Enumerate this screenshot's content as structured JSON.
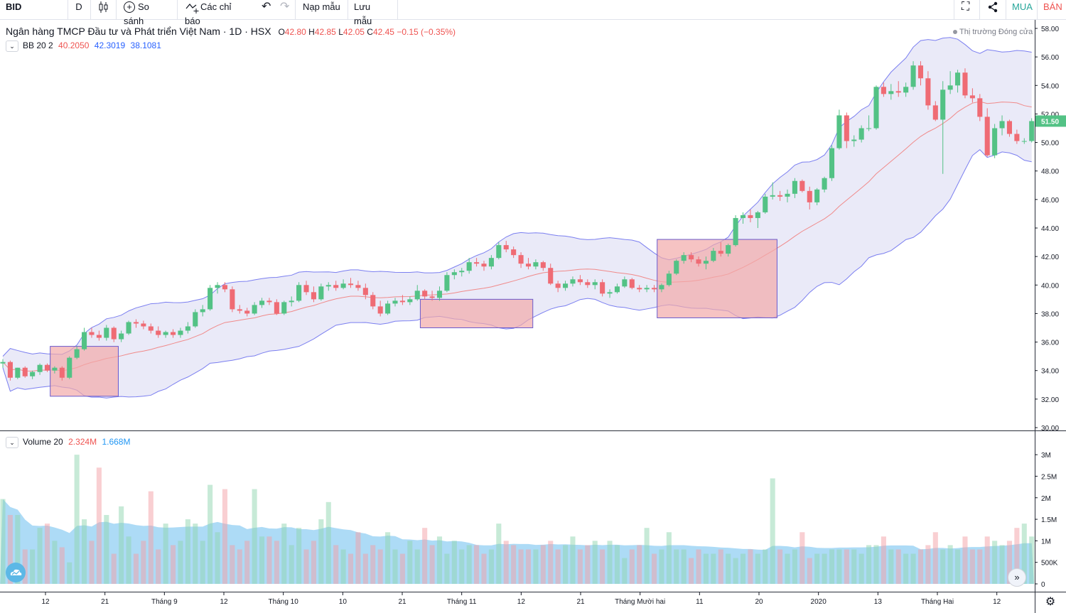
{
  "toolbar": {
    "symbol": "BID",
    "interval": "D",
    "compare_label": "So sánh",
    "indicators_label": "Các chỉ báo",
    "load_template_label": "Nạp mẫu",
    "save_template_label": "Lưu mẫu",
    "buy_label": "MUA",
    "sell_label": "BÁN"
  },
  "header": {
    "title": "Ngân hàng TMCP Đầu tư và Phát triển Việt Nam · 1D · HSX",
    "open_prefix": "O",
    "open": "42.80",
    "high_prefix": "H",
    "high": "42.85",
    "low_prefix": "L",
    "low": "42.05",
    "close_prefix": "C",
    "close": "42.45",
    "change": "−0.15 (−0.35%)",
    "market_status": "Thị trường Đóng cửa"
  },
  "bb_legend": {
    "name": "BB 20 2",
    "basis": "40.2050",
    "upper": "42.3019",
    "lower": "38.1081"
  },
  "volume_legend": {
    "name": "Volume 20",
    "volume": "2.324M",
    "ma": "1.668M"
  },
  "price_axis": [
    "58.00",
    "56.00",
    "54.00",
    "52.00",
    "50.00",
    "48.00",
    "46.00",
    "44.00",
    "42.00",
    "40.00",
    "38.00",
    "36.00",
    "34.00",
    "32.00",
    "30.00"
  ],
  "last_price": "51.50",
  "volume_axis": [
    "3M",
    "2.5M",
    "2M",
    "1.5M",
    "1M",
    "500K",
    "0"
  ],
  "time_axis": [
    "12",
    "21",
    "Tháng 9",
    "12",
    "Tháng 10",
    "10",
    "21",
    "Tháng 11",
    "12",
    "21",
    "Tháng Mười hai",
    "11",
    "20",
    "2020",
    "13",
    "Tháng Hai",
    "12"
  ],
  "colors": {
    "up": "#26a69a",
    "up_body": "#53c285",
    "down": "#ef5350",
    "down_body": "#ef6b74",
    "band_fill": "#e6e6f7",
    "band_line": "#7b7ff0",
    "basis_line": "#f08a8a",
    "highlight": "#f2a9a9",
    "vol_ma_area": "#9fd5f5"
  },
  "chart_data": {
    "type": "candlestick",
    "price_range": [
      30,
      58
    ],
    "volume_range": [
      0,
      3200000
    ],
    "candles": [
      [
        34.5,
        34.8,
        34.2,
        34.6
      ],
      [
        34.6,
        34.7,
        33.3,
        33.5
      ],
      [
        33.5,
        34.2,
        33.4,
        34.2
      ],
      [
        34.2,
        34.3,
        33.5,
        33.6
      ],
      [
        33.6,
        34.0,
        33.4,
        33.9
      ],
      [
        33.9,
        34.5,
        33.7,
        34.4
      ],
      [
        34.4,
        34.5,
        33.9,
        34.0
      ],
      [
        34.0,
        34.3,
        33.8,
        34.2
      ],
      [
        34.2,
        34.3,
        33.3,
        33.5
      ],
      [
        33.5,
        35.0,
        33.4,
        34.9
      ],
      [
        34.9,
        35.7,
        34.8,
        35.5
      ],
      [
        35.5,
        37.0,
        35.4,
        36.7
      ],
      [
        36.7,
        37.0,
        36.3,
        36.5
      ],
      [
        36.5,
        36.8,
        36.1,
        36.3
      ],
      [
        36.3,
        37.2,
        36.1,
        37.0
      ],
      [
        37.0,
        37.1,
        36.0,
        36.2
      ],
      [
        36.2,
        36.8,
        36.0,
        36.6
      ],
      [
        36.6,
        37.5,
        36.5,
        37.4
      ],
      [
        37.4,
        37.6,
        37.0,
        37.3
      ],
      [
        37.3,
        37.5,
        36.9,
        37.1
      ],
      [
        37.1,
        37.3,
        36.6,
        36.8
      ],
      [
        36.8,
        37.1,
        36.3,
        36.5
      ],
      [
        36.5,
        36.8,
        36.3,
        36.7
      ],
      [
        36.7,
        36.9,
        36.3,
        36.5
      ],
      [
        36.5,
        37.0,
        36.3,
        36.8
      ],
      [
        36.8,
        37.4,
        36.6,
        37.1
      ],
      [
        37.1,
        38.3,
        37.0,
        38.1
      ],
      [
        38.1,
        38.6,
        37.8,
        38.3
      ],
      [
        38.3,
        40.0,
        38.2,
        39.8
      ],
      [
        39.8,
        40.2,
        39.4,
        40.0
      ],
      [
        40.0,
        40.2,
        39.5,
        39.7
      ],
      [
        39.7,
        39.9,
        38.1,
        38.3
      ],
      [
        38.3,
        38.6,
        38.0,
        38.2
      ],
      [
        38.2,
        38.4,
        37.8,
        38.0
      ],
      [
        38.0,
        38.8,
        37.9,
        38.6
      ],
      [
        38.6,
        39.1,
        38.4,
        38.9
      ],
      [
        38.9,
        39.1,
        38.6,
        38.8
      ],
      [
        38.8,
        39.0,
        37.9,
        38.0
      ],
      [
        38.0,
        38.9,
        37.9,
        38.8
      ],
      [
        38.8,
        39.2,
        38.5,
        38.9
      ],
      [
        38.9,
        40.2,
        38.8,
        40.0
      ],
      [
        40.0,
        40.3,
        39.3,
        39.5
      ],
      [
        39.5,
        39.9,
        38.8,
        39.0
      ],
      [
        39.0,
        40.1,
        38.9,
        39.9
      ],
      [
        39.9,
        40.2,
        39.6,
        40.0
      ],
      [
        40.0,
        40.3,
        39.6,
        39.8
      ],
      [
        39.8,
        40.4,
        39.7,
        40.1
      ],
      [
        40.1,
        40.5,
        39.8,
        40.0
      ],
      [
        40.0,
        40.3,
        39.6,
        39.8
      ],
      [
        39.8,
        40.1,
        39.0,
        39.3
      ],
      [
        39.3,
        39.5,
        38.3,
        38.5
      ],
      [
        38.5,
        38.9,
        37.8,
        38.0
      ],
      [
        38.0,
        38.9,
        37.9,
        38.7
      ],
      [
        38.7,
        39.1,
        38.5,
        38.9
      ],
      [
        38.9,
        39.3,
        38.6,
        38.8
      ],
      [
        38.8,
        39.2,
        38.6,
        39.0
      ],
      [
        39.0,
        40.0,
        38.9,
        39.6
      ],
      [
        39.6,
        39.7,
        39.0,
        39.2
      ],
      [
        39.2,
        39.6,
        38.9,
        39.1
      ],
      [
        39.1,
        39.9,
        38.9,
        39.6
      ],
      [
        39.6,
        40.9,
        39.5,
        40.7
      ],
      [
        40.7,
        41.1,
        40.4,
        40.9
      ],
      [
        40.9,
        41.2,
        40.6,
        41.0
      ],
      [
        41.0,
        41.9,
        40.8,
        41.6
      ],
      [
        41.6,
        41.9,
        41.3,
        41.5
      ],
      [
        41.5,
        41.7,
        41.0,
        41.3
      ],
      [
        41.3,
        42.1,
        41.1,
        41.9
      ],
      [
        41.9,
        43.0,
        41.8,
        42.8
      ],
      [
        42.8,
        43.1,
        42.3,
        42.5
      ],
      [
        42.5,
        42.7,
        41.9,
        42.1
      ],
      [
        42.1,
        42.3,
        41.2,
        41.5
      ],
      [
        41.5,
        41.9,
        41.1,
        41.3
      ],
      [
        41.3,
        41.8,
        41.1,
        41.6
      ],
      [
        41.6,
        41.7,
        41.0,
        41.2
      ],
      [
        41.2,
        41.5,
        40.0,
        40.1
      ],
      [
        40.1,
        40.3,
        39.5,
        39.8
      ],
      [
        39.8,
        40.3,
        39.6,
        40.1
      ],
      [
        40.1,
        40.6,
        39.9,
        40.4
      ],
      [
        40.4,
        40.7,
        40.0,
        40.2
      ],
      [
        40.2,
        40.4,
        39.8,
        40.0
      ],
      [
        40.0,
        40.4,
        39.7,
        40.2
      ],
      [
        40.2,
        40.4,
        39.2,
        39.4
      ],
      [
        39.4,
        39.7,
        39.1,
        39.5
      ],
      [
        39.5,
        40.1,
        39.4,
        39.9
      ],
      [
        39.9,
        40.6,
        39.8,
        40.4
      ],
      [
        40.4,
        40.5,
        39.7,
        39.8
      ],
      [
        39.8,
        40.0,
        39.5,
        39.7
      ],
      [
        39.7,
        40.0,
        39.5,
        39.8
      ],
      [
        39.8,
        40.0,
        39.5,
        39.7
      ],
      [
        39.7,
        40.1,
        39.5,
        40.0
      ],
      [
        40.0,
        41.0,
        39.9,
        40.8
      ],
      [
        40.8,
        41.8,
        40.7,
        41.7
      ],
      [
        41.7,
        42.3,
        41.5,
        42.1
      ],
      [
        42.1,
        42.3,
        41.6,
        41.8
      ],
      [
        41.8,
        42.0,
        41.3,
        41.5
      ],
      [
        41.5,
        42.0,
        41.1,
        41.7
      ],
      [
        41.7,
        42.6,
        41.6,
        42.4
      ],
      [
        42.4,
        43.0,
        42.0,
        42.2
      ],
      [
        42.2,
        42.9,
        42.0,
        42.8
      ],
      [
        42.8,
        44.9,
        42.7,
        44.7
      ],
      [
        44.7,
        45.1,
        44.3,
        44.9
      ],
      [
        44.9,
        45.3,
        44.4,
        44.7
      ],
      [
        44.7,
        45.2,
        44.0,
        45.1
      ],
      [
        45.1,
        46.4,
        45.0,
        46.2
      ],
      [
        46.2,
        47.2,
        46.0,
        46.3
      ],
      [
        46.3,
        46.6,
        45.9,
        46.2
      ],
      [
        46.2,
        46.7,
        45.8,
        46.4
      ],
      [
        46.4,
        47.5,
        46.1,
        47.3
      ],
      [
        47.3,
        47.4,
        46.5,
        46.6
      ],
      [
        46.6,
        46.9,
        45.3,
        45.8
      ],
      [
        45.8,
        46.8,
        45.6,
        46.7
      ],
      [
        46.7,
        47.6,
        46.5,
        47.5
      ],
      [
        47.5,
        49.8,
        47.3,
        49.6
      ],
      [
        49.6,
        52.3,
        49.5,
        51.9
      ],
      [
        51.9,
        52.1,
        49.6,
        50.1
      ],
      [
        50.1,
        50.5,
        49.7,
        50.2
      ],
      [
        50.2,
        51.2,
        50.0,
        51.0
      ],
      [
        51.0,
        51.9,
        50.8,
        51.0
      ],
      [
        51.0,
        54.0,
        50.9,
        53.9
      ],
      [
        53.9,
        54.2,
        53.2,
        53.4
      ],
      [
        53.4,
        54.1,
        53.0,
        53.6
      ],
      [
        53.6,
        54.3,
        53.2,
        53.5
      ],
      [
        53.5,
        54.2,
        53.2,
        53.9
      ],
      [
        53.9,
        55.7,
        53.7,
        55.4
      ],
      [
        55.4,
        55.7,
        54.0,
        54.5
      ],
      [
        54.5,
        55.0,
        52.3,
        52.6
      ],
      [
        52.6,
        52.9,
        51.5,
        51.6
      ],
      [
        51.6,
        54.3,
        47.8,
        53.7
      ],
      [
        53.7,
        55.0,
        53.4,
        54.0
      ],
      [
        54.0,
        55.1,
        53.5,
        54.9
      ],
      [
        54.9,
        55.2,
        53.1,
        53.3
      ],
      [
        53.3,
        53.8,
        52.8,
        53.1
      ],
      [
        53.1,
        53.4,
        51.5,
        51.8
      ],
      [
        51.8,
        52.4,
        49.0,
        49.1
      ],
      [
        49.1,
        51.3,
        48.9,
        51.0
      ],
      [
        51.0,
        51.9,
        50.5,
        51.5
      ],
      [
        51.5,
        51.6,
        50.4,
        50.6
      ],
      [
        50.6,
        50.9,
        49.9,
        50.1
      ],
      [
        50.1,
        50.3,
        49.9,
        50.1
      ],
      [
        50.1,
        51.7,
        50.0,
        51.5
      ]
    ],
    "volume": [
      1.97,
      1.6,
      1.6,
      0.8,
      0.8,
      1.3,
      1.4,
      1.0,
      0.85,
      0.5,
      3.0,
      1.5,
      1.0,
      2.7,
      1.6,
      0.7,
      1.8,
      1.1,
      0.7,
      1.0,
      2.15,
      0.8,
      1.4,
      0.9,
      1.0,
      1.5,
      1.4,
      1.0,
      2.3,
      1.2,
      2.2,
      0.9,
      0.8,
      1.0,
      2.2,
      1.1,
      1.1,
      1.0,
      1.4,
      0.9,
      1.3,
      0.8,
      1.0,
      1.5,
      1.9,
      0.9,
      0.8,
      0.7,
      1.2,
      0.7,
      0.9,
      0.8,
      1.2,
      0.8,
      0.7,
      1.0,
      0.8,
      1.3,
      0.9,
      1.1,
      0.7,
      1.0,
      0.8,
      0.9,
      0.9,
      0.7,
      0.8,
      1.4,
      1.0,
      0.9,
      0.8,
      0.8,
      0.8,
      0.9,
      1.0,
      0.8,
      0.9,
      1.1,
      0.8,
      0.9,
      1.0,
      0.8,
      1.0,
      0.9,
      0.6,
      0.8,
      0.9,
      1.3,
      0.7,
      0.8,
      1.2,
      0.8,
      0.8,
      0.6,
      0.8,
      0.7,
      0.7,
      0.8,
      0.7,
      0.6,
      0.7,
      0.8,
      0.7,
      0.8,
      2.45,
      0.8,
      0.7,
      0.8,
      1.2,
      0.6,
      0.7,
      0.7,
      0.8,
      0.8,
      0.8,
      0.8,
      0.7,
      0.9,
      0.9,
      1.1,
      0.8,
      0.8,
      0.7,
      0.7,
      0.8,
      0.9,
      1.2,
      0.8,
      0.9,
      0.8,
      1.1,
      0.8,
      0.8,
      1.1,
      1.0,
      0.9,
      1.0,
      1.3,
      1.4,
      1.1
    ],
    "highlights": [
      {
        "from_bar": 7,
        "to_bar": 15,
        "price_top": 35.7,
        "price_bottom": 32.2
      },
      {
        "from_bar": 57,
        "to_bar": 71,
        "price_top": 39.0,
        "price_bottom": 37.0
      },
      {
        "from_bar": 89,
        "to_bar": 104,
        "price_top": 43.2,
        "price_bottom": 37.7
      }
    ]
  }
}
